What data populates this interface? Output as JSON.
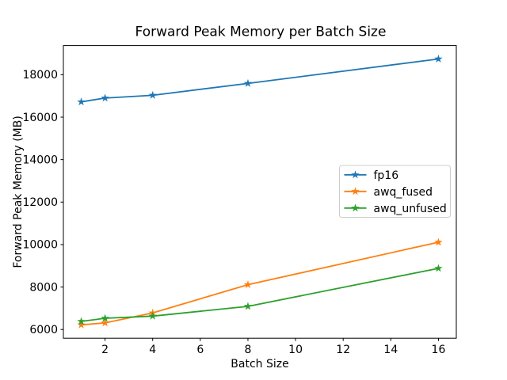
{
  "figure": {
    "background": "#ffffff",
    "axes_color": "#000000"
  },
  "chart_data": {
    "type": "line",
    "title": "Forward Peak Memory per Batch Size",
    "xlabel": "Batch Size",
    "ylabel": "Forward Peak Memory (MB)",
    "x": [
      1,
      2,
      4,
      8,
      16
    ],
    "series": [
      {
        "name": "fp16",
        "color": "#1f77b4",
        "marker": "star",
        "values": [
          16720,
          16900,
          17030,
          17590,
          18740
        ]
      },
      {
        "name": "awq_fused",
        "color": "#ff7f0e",
        "marker": "star",
        "values": [
          6220,
          6310,
          6780,
          8110,
          10110
        ]
      },
      {
        "name": "awq_unfused",
        "color": "#2ca02c",
        "marker": "star",
        "values": [
          6380,
          6530,
          6630,
          7090,
          8880
        ]
      }
    ],
    "xlim": [
      0.25,
      16.75
    ],
    "ylim": [
      5590,
      19370
    ],
    "x_ticks": [
      2,
      4,
      6,
      8,
      10,
      12,
      14,
      16
    ],
    "y_ticks": [
      6000,
      8000,
      10000,
      12000,
      14000,
      16000,
      18000
    ],
    "grid": false,
    "legend_location": "center right"
  }
}
